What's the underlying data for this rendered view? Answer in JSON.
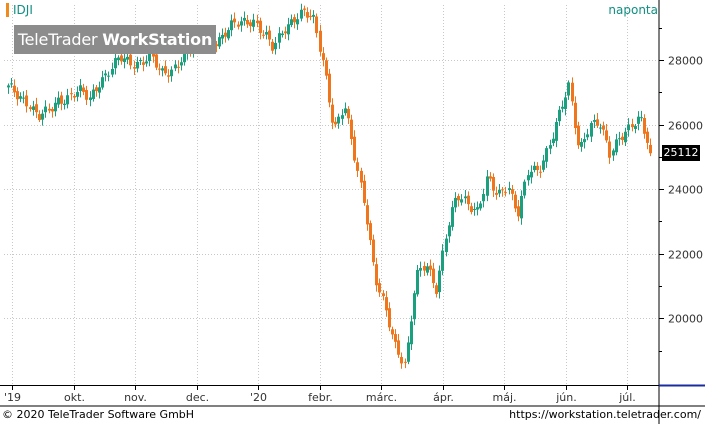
{
  "header": {
    "symbol": "IDJI",
    "period": "naponta",
    "brand_light": "TeleTrader ",
    "brand_bold": "WorkStation"
  },
  "last_value_label": "25112",
  "footer": {
    "copyright": "© 2020 TeleTrader Software GmbH",
    "url": "https://workstation.teletrader.com/"
  },
  "colors": {
    "up": "#1aa07e",
    "down": "#f0761d",
    "accent": "#0f8f82",
    "grid": "#c8c8c8"
  },
  "chart_data": {
    "type": "candlestick",
    "title": "IDJI",
    "x_axis_labels": [
      "'19",
      "okt.",
      "nov.",
      "dec.",
      "'20",
      "febr.",
      "márc.",
      "ápr.",
      "máj.",
      "jún.",
      "júl."
    ],
    "y_axis_labels": [
      "20000",
      "22000",
      "24000",
      "26000",
      "28000"
    ],
    "y_ticks": [
      20000,
      22000,
      24000,
      26000,
      28000
    ],
    "ylim": [
      18000,
      29700
    ],
    "grid": true,
    "last_value": 25112,
    "series": [
      {
        "points": [
          {
            "x": "2019-09",
            "y": 27100
          },
          {
            "x": "2019-09",
            "y": 26900
          },
          {
            "x": "2019-09",
            "y": 26750
          },
          {
            "x": "2019-10",
            "y": 26200
          },
          {
            "x": "2019-10",
            "y": 26350
          },
          {
            "x": "2019-10",
            "y": 26800
          },
          {
            "x": "2019-10",
            "y": 26900
          },
          {
            "x": "2019-10",
            "y": 27000
          },
          {
            "x": "2019-10",
            "y": 26750
          },
          {
            "x": "2019-11",
            "y": 27400
          },
          {
            "x": "2019-11",
            "y": 27700
          },
          {
            "x": "2019-11",
            "y": 28000
          },
          {
            "x": "2019-11",
            "y": 27900
          },
          {
            "x": "2019-11",
            "y": 28000
          },
          {
            "x": "2019-11",
            "y": 28100
          },
          {
            "x": "2019-12",
            "y": 27500
          },
          {
            "x": "2019-12",
            "y": 27700
          },
          {
            "x": "2019-12",
            "y": 28100
          },
          {
            "x": "2019-12",
            "y": 28300
          },
          {
            "x": "2019-12",
            "y": 28550
          },
          {
            "x": "2019-12",
            "y": 28600
          },
          {
            "x": "2020-01",
            "y": 28700
          },
          {
            "x": "2020-01",
            "y": 29000
          },
          {
            "x": "2020-01",
            "y": 29200
          },
          {
            "x": "2020-01",
            "y": 29300
          },
          {
            "x": "2020-01",
            "y": 28800
          },
          {
            "x": "2020-01",
            "y": 28300
          },
          {
            "x": "2020-02",
            "y": 29000
          },
          {
            "x": "2020-02",
            "y": 29300
          },
          {
            "x": "2020-02",
            "y": 29400
          },
          {
            "x": "2020-02",
            "y": 29200
          },
          {
            "x": "2020-02",
            "y": 27900
          },
          {
            "x": "2020-02",
            "y": 25800
          },
          {
            "x": "2020-03",
            "y": 26500
          },
          {
            "x": "2020-03",
            "y": 25000
          },
          {
            "x": "2020-03",
            "y": 23600
          },
          {
            "x": "2020-03",
            "y": 21200
          },
          {
            "x": "2020-03",
            "y": 20200
          },
          {
            "x": "2020-03",
            "y": 19200
          },
          {
            "x": "2020-03",
            "y": 18600
          },
          {
            "x": "2020-03",
            "y": 21200
          },
          {
            "x": "2020-03",
            "y": 21650
          },
          {
            "x": "2020-04",
            "y": 21000
          },
          {
            "x": "2020-04",
            "y": 22700
          },
          {
            "x": "2020-04",
            "y": 23700
          },
          {
            "x": "2020-04",
            "y": 23600
          },
          {
            "x": "2020-04",
            "y": 23400
          },
          {
            "x": "2020-04",
            "y": 24300
          },
          {
            "x": "2020-05",
            "y": 23700
          },
          {
            "x": "2020-05",
            "y": 24200
          },
          {
            "x": "2020-05",
            "y": 23300
          },
          {
            "x": "2020-05",
            "y": 24500
          },
          {
            "x": "2020-05",
            "y": 24500
          },
          {
            "x": "2020-05",
            "y": 25400
          },
          {
            "x": "2020-06",
            "y": 26300
          },
          {
            "x": "2020-06",
            "y": 27100
          },
          {
            "x": "2020-06",
            "y": 25200
          },
          {
            "x": "2020-06",
            "y": 26100
          },
          {
            "x": "2020-06",
            "y": 26000
          },
          {
            "x": "2020-06",
            "y": 25000
          },
          {
            "x": "2020-07",
            "y": 25700
          },
          {
            "x": "2020-07",
            "y": 26000
          },
          {
            "x": "2020-07",
            "y": 26100
          },
          {
            "x": "2020-07",
            "y": 25112
          }
        ]
      }
    ]
  }
}
